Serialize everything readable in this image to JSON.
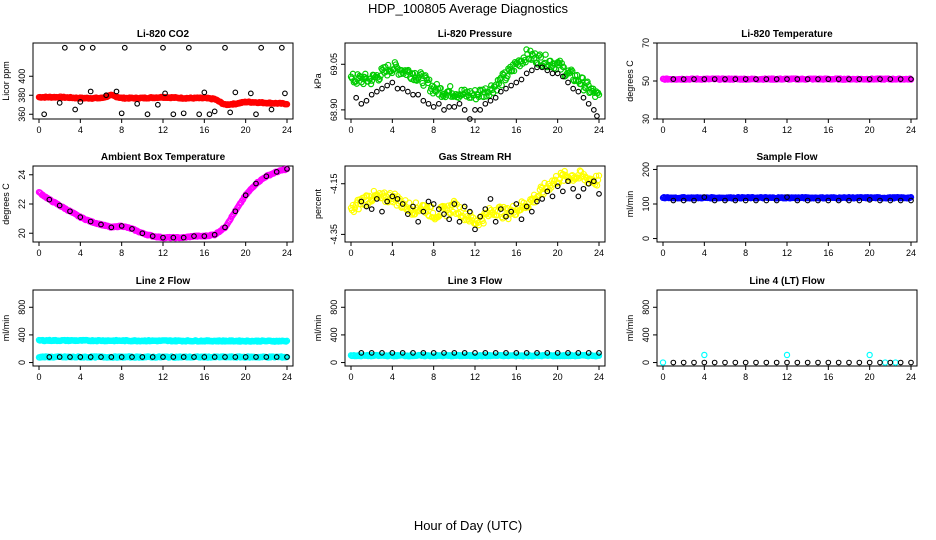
{
  "title": "HDP_100805  Average Diagnostics",
  "xlabel": "Hour of Day (UTC)",
  "colors": {
    "red": "#ff0000",
    "green": "#00cc00",
    "magenta": "#ff00ff",
    "yellow": "#ffff00",
    "blue": "#0000ff",
    "cyan": "#00ffff",
    "black": "#000000"
  },
  "chart_data": [
    {
      "type": "scatter",
      "title": "Li-820 CO2",
      "ylabel": "Licor ppm",
      "xlim": [
        0,
        24
      ],
      "ylim": [
        355,
        435
      ],
      "xticks": [
        0,
        4,
        8,
        12,
        16,
        20,
        24
      ],
      "yticks": [
        360,
        380,
        400
      ],
      "series": [
        {
          "name": "avg",
          "color": "red",
          "style": "dense",
          "x": [
            0,
            2,
            4,
            6,
            7,
            8,
            10,
            12,
            14,
            16,
            17,
            18,
            19,
            20,
            22,
            24
          ],
          "y": [
            378,
            378,
            377,
            377,
            380,
            377,
            377,
            378,
            377,
            377,
            376,
            370,
            371,
            373,
            372,
            371
          ]
        },
        {
          "name": "spikes",
          "color": "black",
          "style": "open",
          "x": [
            0.5,
            2,
            2.5,
            3.5,
            4,
            4.2,
            5,
            5.2,
            6.5,
            7.5,
            8,
            8.3,
            9.5,
            10.5,
            11.5,
            12,
            12.2,
            13,
            14,
            14.5,
            15.5,
            16,
            16.5,
            17,
            18,
            18.5,
            19,
            20.5,
            21,
            21.5,
            22.5,
            23.5,
            23.8
          ],
          "y": [
            360,
            372,
            430,
            365,
            373,
            430,
            384,
            430,
            380,
            384,
            361,
            430,
            371,
            360,
            370,
            430,
            382,
            360,
            361,
            430,
            360,
            383,
            360,
            363,
            430,
            362,
            383,
            382,
            360,
            430,
            365,
            430,
            382
          ]
        }
      ]
    },
    {
      "type": "scatter",
      "title": "Li-820 Pressure",
      "ylabel": "kPa",
      "xlim": [
        0,
        24
      ],
      "ylim": [
        68.87,
        69.12
      ],
      "xticks": [
        0,
        4,
        8,
        12,
        16,
        20,
        24
      ],
      "ytick_labels": [
        "68.90",
        "69.05"
      ],
      "yticks": [
        68.9,
        69.05
      ],
      "series": [
        {
          "name": "avg",
          "color": "green",
          "style": "dense",
          "x": [
            0,
            1,
            2,
            3,
            4,
            5,
            6,
            7,
            8,
            9,
            10,
            11,
            12,
            13,
            14,
            15,
            16,
            17,
            18,
            19,
            20,
            21,
            22,
            23,
            24
          ],
          "y": [
            69.0,
            69.0,
            69.0,
            69.02,
            69.04,
            69.03,
            69.02,
            69.0,
            68.97,
            68.96,
            68.96,
            68.95,
            68.95,
            68.96,
            68.98,
            69.01,
            69.05,
            69.08,
            69.07,
            69.06,
            69.05,
            69.02,
            69.0,
            68.97,
            68.94
          ]
        },
        {
          "name": "hourly",
          "color": "black",
          "style": "open",
          "x": [
            0.5,
            1,
            1.5,
            2,
            2.5,
            3,
            3.5,
            4,
            4.5,
            5,
            5.5,
            6,
            6.5,
            7,
            7.5,
            8,
            8.5,
            9,
            9.5,
            10,
            10.5,
            11,
            11.5,
            12,
            12.5,
            13,
            13.5,
            14,
            14.5,
            15,
            15.5,
            16,
            16.5,
            17,
            17.5,
            18,
            18.5,
            19,
            19.5,
            20,
            20.5,
            21,
            21.5,
            22,
            22.5,
            23,
            23.5,
            23.8
          ],
          "y": [
            68.94,
            68.92,
            68.93,
            68.95,
            68.96,
            68.97,
            68.98,
            68.99,
            68.97,
            68.97,
            68.96,
            68.95,
            68.95,
            68.93,
            68.92,
            68.91,
            68.92,
            68.9,
            68.91,
            68.91,
            68.92,
            68.9,
            68.87,
            68.9,
            68.9,
            68.92,
            68.93,
            68.94,
            68.96,
            68.97,
            68.98,
            68.99,
            69.0,
            69.02,
            69.03,
            69.04,
            69.04,
            69.03,
            69.02,
            69.02,
            69.01,
            68.99,
            68.97,
            68.96,
            68.94,
            68.92,
            68.9,
            68.88
          ]
        }
      ]
    },
    {
      "type": "scatter",
      "title": "Li-820 Temperature",
      "ylabel": "degrees C",
      "xlim": [
        0,
        24
      ],
      "ylim": [
        30,
        70
      ],
      "xticks": [
        0,
        4,
        8,
        12,
        16,
        20,
        24
      ],
      "yticks": [
        30,
        50,
        70
      ],
      "series": [
        {
          "name": "avg",
          "color": "magenta",
          "style": "dense",
          "x": [
            0,
            24
          ],
          "y": [
            51,
            51
          ]
        },
        {
          "name": "hourly",
          "color": "black",
          "style": "open",
          "x": [
            1,
            2,
            3,
            4,
            5,
            6,
            7,
            8,
            9,
            10,
            11,
            12,
            13,
            14,
            15,
            16,
            17,
            18,
            19,
            20,
            21,
            22,
            23,
            24
          ],
          "y": [
            51,
            51,
            51,
            51,
            51,
            51,
            51,
            51,
            51,
            51,
            51,
            51,
            51,
            51,
            51,
            51,
            51,
            51,
            51,
            51,
            51,
            51,
            51,
            51
          ]
        }
      ]
    },
    {
      "type": "scatter",
      "title": "Ambient Box Temperature",
      "ylabel": "degrees C",
      "xlim": [
        0,
        24
      ],
      "ylim": [
        19.4,
        24.6
      ],
      "xticks": [
        0,
        4,
        8,
        12,
        16,
        20,
        24
      ],
      "yticks": [
        20,
        22,
        24
      ],
      "series": [
        {
          "name": "avg",
          "color": "magenta",
          "style": "dense",
          "x": [
            0,
            1,
            2,
            3,
            4,
            5,
            6,
            7,
            8,
            9,
            10,
            11,
            12,
            13,
            14,
            15,
            16,
            17,
            18,
            19,
            20,
            21,
            22,
            23,
            24
          ],
          "y": [
            22.8,
            22.3,
            21.9,
            21.5,
            21.1,
            20.8,
            20.6,
            20.4,
            20.5,
            20.3,
            20.0,
            19.8,
            19.7,
            19.7,
            19.7,
            19.8,
            19.8,
            19.9,
            20.4,
            21.5,
            22.6,
            23.4,
            23.9,
            24.2,
            24.4
          ]
        },
        {
          "name": "hourly",
          "color": "black",
          "style": "open",
          "x": [
            1,
            2,
            3,
            4,
            5,
            6,
            7,
            8,
            9,
            10,
            11,
            12,
            13,
            14,
            15,
            16,
            17,
            18,
            19,
            20,
            21,
            22,
            23,
            24
          ],
          "y": [
            22.3,
            21.9,
            21.5,
            21.1,
            20.8,
            20.6,
            20.4,
            20.5,
            20.3,
            20.0,
            19.8,
            19.7,
            19.7,
            19.7,
            19.8,
            19.8,
            19.9,
            20.4,
            21.5,
            22.6,
            23.4,
            23.9,
            24.2,
            24.4
          ]
        }
      ]
    },
    {
      "type": "scatter",
      "title": "Gas Stream RH",
      "ylabel": "percent",
      "xlim": [
        0,
        24
      ],
      "ylim": [
        -4.38,
        -4.08
      ],
      "xticks": [
        0,
        4,
        8,
        12,
        16,
        20,
        24
      ],
      "ytick_labels": [
        "-4.35",
        "-4.15"
      ],
      "yticks": [
        -4.35,
        -4.15
      ],
      "series": [
        {
          "name": "avg",
          "color": "yellow",
          "style": "dense",
          "x": [
            0,
            1,
            2,
            3,
            4,
            5,
            6,
            7,
            8,
            9,
            10,
            11,
            12,
            13,
            14,
            15,
            16,
            17,
            18,
            19,
            20,
            21,
            22,
            23,
            24
          ],
          "y": [
            -4.26,
            -4.22,
            -4.2,
            -4.21,
            -4.2,
            -4.23,
            -4.25,
            -4.24,
            -4.27,
            -4.26,
            -4.24,
            -4.27,
            -4.3,
            -4.28,
            -4.25,
            -4.27,
            -4.25,
            -4.23,
            -4.2,
            -4.16,
            -4.13,
            -4.12,
            -4.12,
            -4.13,
            -4.14
          ]
        },
        {
          "name": "hourly",
          "color": "black",
          "style": "open",
          "x": [
            1,
            1.5,
            2,
            2.5,
            3,
            3.5,
            4,
            4.5,
            5,
            5.5,
            6,
            6.5,
            7,
            7.5,
            8,
            8.5,
            9,
            9.5,
            10,
            10.5,
            11,
            11.5,
            12,
            12.5,
            13,
            13.5,
            14,
            14.5,
            15,
            15.5,
            16,
            16.5,
            17,
            17.5,
            18,
            18.5,
            19,
            19.5,
            20,
            20.5,
            21,
            21.5,
            22,
            22.5,
            23,
            23.5,
            24
          ],
          "y": [
            -4.22,
            -4.24,
            -4.25,
            -4.21,
            -4.26,
            -4.22,
            -4.2,
            -4.21,
            -4.23,
            -4.27,
            -4.24,
            -4.3,
            -4.26,
            -4.22,
            -4.23,
            -4.25,
            -4.27,
            -4.29,
            -4.23,
            -4.3,
            -4.24,
            -4.26,
            -4.33,
            -4.28,
            -4.25,
            -4.21,
            -4.3,
            -4.25,
            -4.28,
            -4.26,
            -4.23,
            -4.29,
            -4.24,
            -4.26,
            -4.22,
            -4.21,
            -4.18,
            -4.2,
            -4.16,
            -4.18,
            -4.14,
            -4.17,
            -4.2,
            -4.17,
            -4.15,
            -4.14,
            -4.19
          ]
        }
      ]
    },
    {
      "type": "scatter",
      "title": "Sample Flow",
      "ylabel": "ml/min",
      "xlim": [
        0,
        24
      ],
      "ylim": [
        -10,
        210
      ],
      "xticks": [
        0,
        4,
        8,
        12,
        16,
        20,
        24
      ],
      "yticks": [
        0,
        100,
        200
      ],
      "series": [
        {
          "name": "avg",
          "color": "blue",
          "style": "dense",
          "x": [
            0,
            24
          ],
          "y": [
            118,
            118
          ]
        },
        {
          "name": "hourly",
          "color": "black",
          "style": "open",
          "x": [
            1,
            2,
            3,
            4,
            5,
            6,
            7,
            8,
            9,
            10,
            11,
            12,
            13,
            14,
            15,
            16,
            17,
            18,
            19,
            20,
            21,
            22,
            23,
            24
          ],
          "y": [
            110,
            110,
            110,
            120,
            110,
            110,
            110,
            110,
            110,
            110,
            110,
            120,
            110,
            110,
            110,
            110,
            110,
            110,
            110,
            112,
            110,
            110,
            110,
            110
          ]
        }
      ]
    },
    {
      "type": "scatter",
      "title": "Line 2 Flow",
      "ylabel": "ml/min",
      "xlim": [
        0,
        24
      ],
      "ylim": [
        -50,
        1050
      ],
      "xticks": [
        0,
        4,
        8,
        12,
        16,
        20,
        24
      ],
      "yticks": [
        0,
        400,
        800
      ],
      "series": [
        {
          "name": "cyan_avg",
          "color": "cyan",
          "style": "dense",
          "x": [
            0,
            24
          ],
          "y": [
            320,
            310
          ]
        },
        {
          "name": "cyan_low",
          "color": "cyan",
          "style": "dense",
          "x": [
            0,
            24
          ],
          "y": [
            80,
            80
          ]
        },
        {
          "name": "hourly",
          "color": "black",
          "style": "open",
          "x": [
            1,
            2,
            3,
            4,
            5,
            6,
            7,
            8,
            9,
            10,
            11,
            12,
            13,
            14,
            15,
            16,
            17,
            18,
            19,
            20,
            21,
            22,
            23,
            24
          ],
          "y": [
            80,
            80,
            80,
            80,
            80,
            80,
            80,
            80,
            80,
            80,
            80,
            80,
            80,
            80,
            80,
            80,
            80,
            80,
            80,
            80,
            80,
            80,
            80,
            80
          ]
        }
      ]
    },
    {
      "type": "scatter",
      "title": "Line 3 Flow",
      "ylabel": "ml/min",
      "xlim": [
        0,
        24
      ],
      "ylim": [
        -50,
        1050
      ],
      "xticks": [
        0,
        4,
        8,
        12,
        16,
        20,
        24
      ],
      "yticks": [
        0,
        400,
        800
      ],
      "series": [
        {
          "name": "cyan_avg",
          "color": "cyan",
          "style": "dense",
          "x": [
            0,
            24
          ],
          "y": [
            100,
            100
          ]
        },
        {
          "name": "hourly",
          "color": "black",
          "style": "open",
          "x": [
            1,
            2,
            3,
            4,
            5,
            6,
            7,
            8,
            9,
            10,
            11,
            12,
            13,
            14,
            15,
            16,
            17,
            18,
            19,
            20,
            21,
            22,
            23,
            24
          ],
          "y": [
            140,
            140,
            140,
            140,
            140,
            140,
            140,
            140,
            140,
            140,
            140,
            140,
            140,
            140,
            140,
            140,
            140,
            140,
            140,
            140,
            140,
            140,
            140,
            140
          ]
        }
      ]
    },
    {
      "type": "scatter",
      "title": "Line 4 (LT) Flow",
      "ylabel": "ml/min",
      "xlim": [
        0,
        24
      ],
      "ylim": [
        -50,
        1050
      ],
      "xticks": [
        0,
        4,
        8,
        12,
        16,
        20,
        24
      ],
      "yticks": [
        0,
        400,
        800
      ],
      "series": [
        {
          "name": "cyan_avg",
          "color": "cyan",
          "style": "sparse",
          "x": [
            0,
            4,
            12,
            20,
            21.5,
            22.5
          ],
          "y": [
            0,
            110,
            110,
            110,
            0,
            0
          ]
        },
        {
          "name": "hourly",
          "color": "black",
          "style": "open",
          "x": [
            1,
            2,
            3,
            4,
            5,
            6,
            7,
            8,
            9,
            10,
            11,
            12,
            13,
            14,
            15,
            16,
            17,
            18,
            19,
            20,
            21,
            22,
            23,
            24
          ],
          "y": [
            0,
            0,
            0,
            0,
            0,
            0,
            0,
            0,
            0,
            0,
            0,
            0,
            0,
            0,
            0,
            0,
            0,
            0,
            0,
            0,
            0,
            0,
            0,
            0
          ]
        }
      ]
    }
  ]
}
